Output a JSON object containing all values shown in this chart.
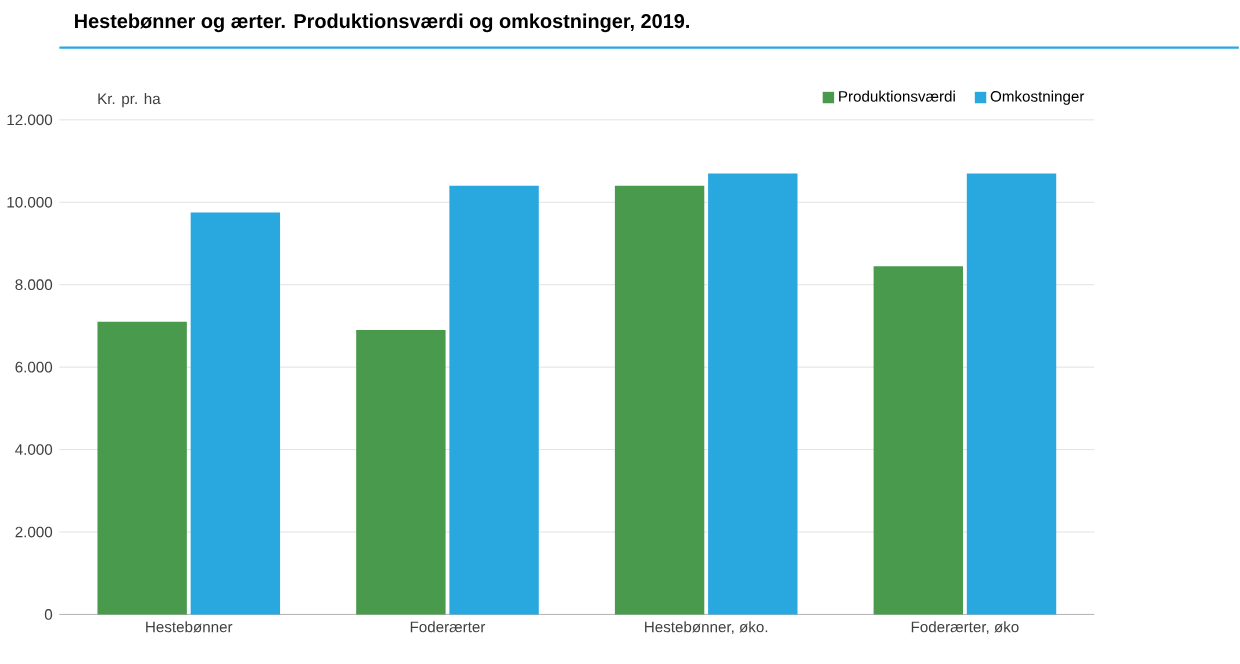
{
  "chart_data": {
    "type": "bar",
    "title": "Hestebønner og ærter. Produktionsværdi og omkostninger, 2019.",
    "ylabel": "Kr. pr. ha",
    "categories": [
      "Hestebønner",
      "Foderærter",
      "Hestebønner, øko.",
      "Foderærter, øko"
    ],
    "series": [
      {
        "name": "Produktionsværdi",
        "color": "#4a9a4e",
        "values": [
          7100,
          6900,
          10400,
          8450
        ]
      },
      {
        "name": "Omkostninger",
        "color": "#29a8e0",
        "values": [
          9750,
          10400,
          10700,
          10700
        ]
      }
    ],
    "ylim": [
      0,
      12000
    ],
    "yticks": [
      0,
      {
        "value": 2000,
        "label": "2.000"
      },
      {
        "value": 4000,
        "label": "4.000"
      },
      {
        "value": 6000,
        "label": "6.000"
      },
      {
        "value": 8000,
        "label": "8.000"
      },
      {
        "value": 10000,
        "label": "10.000"
      },
      {
        "value": 12000,
        "label": "12.000"
      }
    ],
    "grid": "y",
    "legend": "top right"
  }
}
